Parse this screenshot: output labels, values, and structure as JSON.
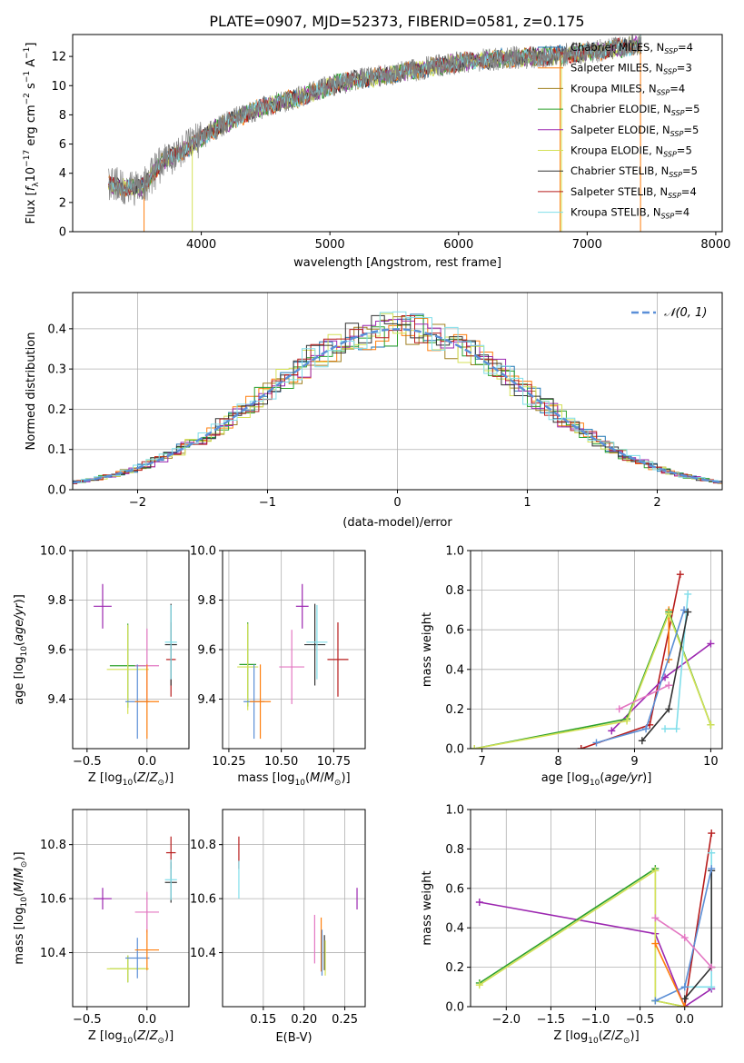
{
  "figure_title": "PLATE=0907, MJD=52373, FIBERID=0581, z=0.175",
  "colors": [
    "#1f77b4",
    "#ff7f0e",
    "#bcbd22",
    "#2ca02c",
    "#9467bd",
    "#bcf55a",
    "#3b3b3b",
    "#d62728",
    "#7fd6d6",
    "#e377c2",
    "#17becf",
    "#8c564b",
    "#9aa0ff",
    "#a08020",
    "#6a6a6a"
  ],
  "chart_data": [
    {
      "id": "spectrum",
      "type": "line",
      "xlabel": "wavelength [Angstrom, rest frame]",
      "ylabel": "Flux [f_λ 10^-17 erg cm^-2 s^-1 A^-1]",
      "xlim": [
        3000,
        8050
      ],
      "ylim": [
        0,
        13.5
      ],
      "xticks": [
        4000,
        5000,
        6000,
        7000,
        8000
      ],
      "yticks": [
        0,
        2,
        4,
        6,
        8,
        10,
        12
      ],
      "grid": false,
      "legend_position": "top-right",
      "data_color": "#808080",
      "continuum": {
        "x": [
          3280,
          3450,
          3550,
          3700,
          3900,
          4100,
          4300,
          4500,
          4800,
          5000,
          5200,
          5500,
          5800,
          6100,
          6400,
          6700,
          7000,
          7200,
          7400
        ],
        "y": [
          3.2,
          3.0,
          3.1,
          4.8,
          5.8,
          7.0,
          7.9,
          8.6,
          9.3,
          10.0,
          10.4,
          10.8,
          11.3,
          11.7,
          11.9,
          12.0,
          12.3,
          12.5,
          12.8
        ]
      },
      "series": [
        {
          "name": "Chabrier MILES",
          "nssp": "4",
          "color": "#1f77b4"
        },
        {
          "name": "Salpeter MILES",
          "nssp": "3",
          "color": "#ff7f0e"
        },
        {
          "name": "Kroupa MILES",
          "nssp": "4",
          "color": "#a08020"
        },
        {
          "name": "Chabrier ELODIE",
          "nssp": "5",
          "color": "#2ca02c"
        },
        {
          "name": "Salpeter ELODIE",
          "nssp": "5",
          "color": "#9c27b0"
        },
        {
          "name": "Kroupa ELODIE",
          "nssp": "5",
          "color": "#d4e157"
        },
        {
          "name": "Chabrier STELIB",
          "nssp": "5",
          "color": "#333333"
        },
        {
          "name": "Salpeter STELIB",
          "nssp": "4",
          "color": "#b71c1c"
        },
        {
          "name": "Kroupa STELIB",
          "nssp": "4",
          "color": "#80deea"
        }
      ]
    },
    {
      "id": "residuals",
      "type": "line",
      "xlabel": "(data-model)/error",
      "ylabel": "Normed distribution",
      "xlim": [
        -2.5,
        2.5
      ],
      "ylim": [
        0,
        0.49
      ],
      "xticks": [
        -2,
        -1,
        0,
        1,
        2
      ],
      "yticks": [
        0.0,
        0.1,
        0.2,
        0.3,
        0.4
      ],
      "grid": true,
      "legend_position": "top-right",
      "reference_label": "𝒩(0, 1)",
      "reference_color": "#5a8fd8"
    },
    {
      "id": "age_vs_Z",
      "type": "scatter",
      "xlabel": "Z [log10(Z/Z☉)]",
      "ylabel": "age  [log10(age/yr)]",
      "xlim": [
        -0.62,
        0.35
      ],
      "ylim": [
        9.2,
        10.0
      ],
      "xticks": [
        -0.5,
        0.0
      ],
      "yticks": [
        9.4,
        9.6,
        9.8,
        10.0
      ],
      "grid": true,
      "points": [
        {
          "x": -0.37,
          "y": 9.775,
          "xerr": 0.15,
          "yerr": 0.18,
          "color": "#9c27b0"
        },
        {
          "x": -0.16,
          "y": 9.535,
          "xerr": 0.3,
          "yerr": 0.34,
          "color": "#2ca02c"
        },
        {
          "x": -0.16,
          "y": 9.52,
          "xerr": 0.35,
          "yerr": 0.36,
          "color": "#d4e157"
        },
        {
          "x": 0.0,
          "y": 9.535,
          "xerr": 0.2,
          "yerr": 0.3,
          "color": "#e377c2"
        },
        {
          "x": -0.08,
          "y": 9.39,
          "xerr": 0.2,
          "yerr": 0.3,
          "color": "#5b8fd6"
        },
        {
          "x": 0.0,
          "y": 9.39,
          "xerr": 0.2,
          "yerr": 0.3,
          "color": "#ff7f0e"
        },
        {
          "x": 0.2,
          "y": 9.56,
          "xerr": 0.08,
          "yerr": 0.3,
          "color": "#b71c1c"
        },
        {
          "x": 0.2,
          "y": 9.62,
          "xerr": 0.1,
          "yerr": 0.33,
          "color": "#333333"
        },
        {
          "x": 0.2,
          "y": 9.63,
          "xerr": 0.1,
          "yerr": 0.3,
          "color": "#80deea"
        }
      ]
    },
    {
      "id": "age_vs_mass",
      "type": "scatter",
      "xlabel": "mass [log10(M/M☉)]",
      "ylabel": "",
      "xlim": [
        10.22,
        10.9
      ],
      "ylim": [
        9.2,
        10.0
      ],
      "xticks": [
        10.25,
        10.5,
        10.75
      ],
      "yticks": [
        9.4,
        9.6,
        9.8,
        10.0
      ],
      "grid": true,
      "points": [
        {
          "x": 10.6,
          "y": 9.775,
          "xerr": 0.06,
          "yerr": 0.18,
          "color": "#9c27b0"
        },
        {
          "x": 10.34,
          "y": 9.54,
          "xerr": 0.08,
          "yerr": 0.34,
          "color": "#2ca02c"
        },
        {
          "x": 10.34,
          "y": 9.53,
          "xerr": 0.1,
          "yerr": 0.35,
          "color": "#d4e157"
        },
        {
          "x": 10.55,
          "y": 9.53,
          "xerr": 0.12,
          "yerr": 0.3,
          "color": "#e377c2"
        },
        {
          "x": 10.37,
          "y": 9.39,
          "xerr": 0.1,
          "yerr": 0.3,
          "color": "#5b8fd6"
        },
        {
          "x": 10.4,
          "y": 9.39,
          "xerr": 0.1,
          "yerr": 0.3,
          "color": "#ff7f0e"
        },
        {
          "x": 10.77,
          "y": 9.56,
          "xerr": 0.1,
          "yerr": 0.3,
          "color": "#b71c1c"
        },
        {
          "x": 10.66,
          "y": 9.62,
          "xerr": 0.1,
          "yerr": 0.33,
          "color": "#333333"
        },
        {
          "x": 10.67,
          "y": 9.63,
          "xerr": 0.1,
          "yerr": 0.3,
          "color": "#80deea"
        }
      ]
    },
    {
      "id": "mass_weight_vs_age",
      "type": "line",
      "xlabel": "age  [log10(age/yr)]",
      "ylabel": "mass weight",
      "xlim": [
        6.85,
        10.15
      ],
      "ylim": [
        0,
        1.0
      ],
      "xticks": [
        7,
        8,
        9,
        10
      ],
      "yticks": [
        0.0,
        0.2,
        0.4,
        0.6,
        0.8,
        1.0
      ],
      "grid": true,
      "series": [
        {
          "name": "Salpeter STELIB",
          "color": "#b71c1c",
          "x": [
            8.3,
            9.2,
            9.6
          ],
          "y": [
            0.0,
            0.12,
            0.88
          ]
        },
        {
          "name": "Salpeter ELODIE",
          "color": "#9c27b0",
          "x": [
            8.7,
            9.4,
            10.0
          ],
          "y": [
            0.09,
            0.36,
            0.53
          ]
        },
        {
          "name": "Kroupa MILES",
          "color": "#ff7f0e",
          "x": [
            9.45,
            9.45
          ],
          "y": [
            0.45,
            0.7
          ]
        },
        {
          "name": "Chabrier ELODIE",
          "color": "#2ca02c",
          "x": [
            6.9,
            8.9,
            9.45,
            10.0
          ],
          "y": [
            0.0,
            0.15,
            0.69,
            0.12
          ]
        },
        {
          "name": "Kroupa ELODIE",
          "color": "#d4e157",
          "x": [
            6.9,
            8.9,
            9.45,
            10.0
          ],
          "y": [
            0.0,
            0.14,
            0.68,
            0.12
          ]
        },
        {
          "name": "Kroupa STELIB",
          "color": "#80deea",
          "x": [
            9.4,
            9.55,
            9.7
          ],
          "y": [
            0.1,
            0.1,
            0.78
          ]
        },
        {
          "name": "Chabrier MILES",
          "color": "#5b8fd6",
          "x": [
            8.5,
            9.15,
            9.65
          ],
          "y": [
            0.03,
            0.1,
            0.7
          ]
        },
        {
          "name": "Chabrier STELIB",
          "color": "#333333",
          "x": [
            9.1,
            9.45,
            9.7
          ],
          "y": [
            0.04,
            0.2,
            0.69
          ]
        },
        {
          "name": "Salpeter MILES",
          "color": "#e377c2",
          "x": [
            8.8,
            9.45
          ],
          "y": [
            0.2,
            0.32
          ]
        }
      ]
    },
    {
      "id": "mass_vs_Z",
      "type": "scatter",
      "xlabel": "Z [log10(Z/Z☉)]",
      "ylabel": "mass [log10(M/M☉)]",
      "xlim": [
        -0.62,
        0.35
      ],
      "ylim": [
        10.2,
        10.93
      ],
      "xticks": [
        -0.5,
        0.0
      ],
      "yticks": [
        10.4,
        10.6,
        10.8
      ],
      "grid": true,
      "points": [
        {
          "x": -0.37,
          "y": 10.6,
          "xerr": 0.15,
          "yerr": 0.08,
          "color": "#9c27b0"
        },
        {
          "x": -0.16,
          "y": 10.34,
          "xerr": 0.3,
          "yerr": 0.1,
          "color": "#2ca02c"
        },
        {
          "x": -0.16,
          "y": 10.34,
          "xerr": 0.35,
          "yerr": 0.1,
          "color": "#d4e157"
        },
        {
          "x": 0.0,
          "y": 10.55,
          "xerr": 0.2,
          "yerr": 0.15,
          "color": "#e377c2"
        },
        {
          "x": -0.08,
          "y": 10.38,
          "xerr": 0.2,
          "yerr": 0.15,
          "color": "#5b8fd6"
        },
        {
          "x": 0.0,
          "y": 10.41,
          "xerr": 0.2,
          "yerr": 0.15,
          "color": "#ff7f0e"
        },
        {
          "x": 0.2,
          "y": 10.77,
          "xerr": 0.08,
          "yerr": 0.12,
          "color": "#b71c1c"
        },
        {
          "x": 0.2,
          "y": 10.66,
          "xerr": 0.1,
          "yerr": 0.15,
          "color": "#333333"
        },
        {
          "x": 0.2,
          "y": 10.67,
          "xerr": 0.1,
          "yerr": 0.15,
          "color": "#80deea"
        }
      ]
    },
    {
      "id": "mass_vs_ebv",
      "type": "scatter",
      "xlabel": "E(B-V)",
      "ylabel": "",
      "xlim": [
        0.1,
        0.275
      ],
      "ylim": [
        10.2,
        10.93
      ],
      "xticks": [
        0.15,
        0.2,
        0.25
      ],
      "yticks": [
        10.4,
        10.6,
        10.8
      ],
      "grid": true,
      "points": [
        {
          "x": 0.12,
          "y": 10.77,
          "xerr": 0,
          "yerr": 0.12,
          "color": "#b71c1c"
        },
        {
          "x": 0.12,
          "y": 10.67,
          "xerr": 0,
          "yerr": 0.14,
          "color": "#80deea"
        },
        {
          "x": 0.213,
          "y": 10.45,
          "xerr": 0,
          "yerr": 0.18,
          "color": "#e377c2"
        },
        {
          "x": 0.221,
          "y": 10.43,
          "xerr": 0,
          "yerr": 0.2,
          "color": "#ff7f0e"
        },
        {
          "x": 0.222,
          "y": 10.4,
          "xerr": 0,
          "yerr": 0.17,
          "color": "#5b8fd6"
        },
        {
          "x": 0.225,
          "y": 10.4,
          "xerr": 0,
          "yerr": 0.13,
          "color": "#333333"
        },
        {
          "x": 0.226,
          "y": 10.38,
          "xerr": 0,
          "yerr": 0.13,
          "color": "#d4e157"
        },
        {
          "x": 0.265,
          "y": 10.6,
          "xerr": 0,
          "yerr": 0.08,
          "color": "#9c27b0"
        }
      ]
    },
    {
      "id": "mass_weight_vs_Z",
      "type": "line",
      "xlabel": "Z [log10(Z/Z☉)]",
      "ylabel": "mass weight",
      "xlim": [
        -2.4,
        0.42
      ],
      "ylim": [
        0,
        1.0
      ],
      "xticks": [
        -2.0,
        -1.5,
        -1.0,
        -0.5,
        0.0
      ],
      "yticks": [
        0.0,
        0.2,
        0.4,
        0.6,
        0.8,
        1.0
      ],
      "grid": true,
      "series": [
        {
          "name": "Salpeter ELODIE",
          "color": "#9c27b0",
          "x": [
            -2.3,
            -0.33,
            0.0,
            0.3
          ],
          "y": [
            0.53,
            0.37,
            0.0,
            0.09
          ]
        },
        {
          "name": "Chabrier ELODIE",
          "color": "#2ca02c",
          "x": [
            -2.3,
            -0.33,
            -0.33,
            0.0
          ],
          "y": [
            0.12,
            0.7,
            0.03,
            0.0
          ]
        },
        {
          "name": "Kroupa ELODIE",
          "color": "#d4e157",
          "x": [
            -2.3,
            -0.33,
            -0.33,
            0.0
          ],
          "y": [
            0.11,
            0.69,
            0.03,
            0.0
          ]
        },
        {
          "name": "Salpeter STELIB",
          "color": "#b71c1c",
          "x": [
            0.0,
            0.3
          ],
          "y": [
            0.0,
            0.88
          ]
        },
        {
          "name": "Kroupa STELIB",
          "color": "#80deea",
          "x": [
            0.0,
            0.3,
            0.3
          ],
          "y": [
            0.1,
            0.1,
            0.78
          ]
        },
        {
          "name": "Chabrier STELIB",
          "color": "#333333",
          "x": [
            0.0,
            0.3,
            0.3
          ],
          "y": [
            0.04,
            0.2,
            0.69
          ]
        },
        {
          "name": "Chabrier MILES",
          "color": "#5b8fd6",
          "x": [
            -0.33,
            0.0,
            0.3
          ],
          "y": [
            0.03,
            0.1,
            0.7
          ]
        },
        {
          "name": "Kroupa MILES",
          "color": "#ff7f0e",
          "x": [
            -0.33,
            0.0
          ],
          "y": [
            0.32,
            0.0
          ]
        },
        {
          "name": "Salpeter MILES",
          "color": "#e377c2",
          "x": [
            -0.33,
            0.0,
            0.3
          ],
          "y": [
            0.45,
            0.35,
            0.2
          ]
        }
      ]
    }
  ]
}
